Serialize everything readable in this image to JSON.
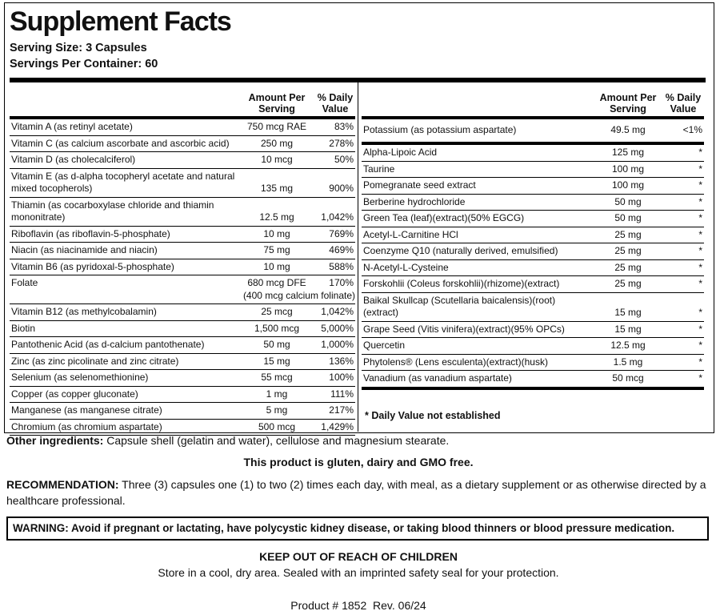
{
  "title": "Supplement Facts",
  "serving_size": "Serving Size: 3 Capsules",
  "servings_per_container": "Servings Per Container: 60",
  "left_table": {
    "headers": [
      "Amount Per Serving",
      "% Daily Value"
    ],
    "rows": [
      {
        "name": "Vitamin A (as retinyl acetate)",
        "amount": "750 mcg RAE",
        "dv": "83%"
      },
      {
        "name": "Vitamin C (as calcium ascorbate and ascorbic acid)",
        "amount": "250 mg",
        "dv": "278%"
      },
      {
        "name": "Vitamin D (as cholecalciferol)",
        "amount": "10 mcg",
        "dv": "50%"
      },
      {
        "name": "Vitamin E (as d-alpha tocopheryl acetate and natural mixed tocopherols)",
        "amount": "135 mg",
        "dv": "900%"
      },
      {
        "name": "Thiamin (as cocarboxylase chloride and thiamin mononitrate)",
        "amount": "12.5 mg",
        "dv": "1,042%"
      },
      {
        "name": "Riboflavin (as riboflavin-5-phosphate)",
        "amount": "10 mg",
        "dv": "769%"
      },
      {
        "name": "Niacin (as niacinamide and niacin)",
        "amount": "75 mg",
        "dv": "469%"
      },
      {
        "name": "Vitamin B6 (as pyridoxal-5-phosphate)",
        "amount": "10 mg",
        "dv": "588%"
      },
      {
        "name": "Folate",
        "amount": "680 mcg DFE",
        "dv": "170%",
        "note": "(400 mcg calcium folinate)"
      },
      {
        "name": "Vitamin B12 (as methylcobalamin)",
        "amount": "25 mcg",
        "dv": "1,042%"
      },
      {
        "name": "Biotin",
        "amount": "1,500 mcg",
        "dv": "5,000%"
      },
      {
        "name": "Pantothenic Acid (as d-calcium pantothenate)",
        "amount": "50 mg",
        "dv": "1,000%"
      },
      {
        "name": "Zinc (as zinc picolinate and zinc citrate)",
        "amount": "15 mg",
        "dv": "136%"
      },
      {
        "name": "Selenium (as selenomethionine)",
        "amount": "55 mcg",
        "dv": "100%"
      },
      {
        "name": "Copper (as copper gluconate)",
        "amount": "1 mg",
        "dv": "111%"
      },
      {
        "name": "Manganese (as manganese citrate)",
        "amount": "5 mg",
        "dv": "217%"
      },
      {
        "name": "Chromium (as chromium aspartate)",
        "amount": "500 mcg",
        "dv": "1,429%"
      }
    ]
  },
  "right_table": {
    "headers": [
      "Amount Per Serving",
      "% Daily Value"
    ],
    "rows": [
      {
        "name": "Potassium (as potassium aspartate)",
        "amount": "49.5 mg",
        "dv": "<1%"
      },
      {
        "name": "Alpha-Lipoic Acid",
        "amount": "125 mg",
        "dv": "*"
      },
      {
        "name": "Taurine",
        "amount": "100 mg",
        "dv": "*"
      },
      {
        "name": "Pomegranate seed extract",
        "amount": "100 mg",
        "dv": "*"
      },
      {
        "name": "Berberine hydrochloride",
        "amount": "50 mg",
        "dv": "*"
      },
      {
        "name": "Green Tea (leaf)(extract)(50% EGCG)",
        "amount": "50 mg",
        "dv": "*"
      },
      {
        "name": "Acetyl-L-Carnitine HCl",
        "amount": "25 mg",
        "dv": "*"
      },
      {
        "name": "Coenzyme Q10 (naturally derived, emulsified)",
        "amount": "25 mg",
        "dv": "*"
      },
      {
        "name": "N-Acetyl-L-Cysteine",
        "amount": "25 mg",
        "dv": "*"
      },
      {
        "name": "Forskohlii (Coleus forskohlii)(rhizome)(extract)",
        "amount": "25 mg",
        "dv": "*"
      },
      {
        "name": "Baikal Skullcap (Scutellaria baicalensis)(root) (extract)",
        "amount": "15 mg",
        "dv": "*"
      },
      {
        "name": "Grape Seed (Vitis vinifera)(extract)(95% OPCs)",
        "amount": "15 mg",
        "dv": "*"
      },
      {
        "name": "Quercetin",
        "amount": "12.5 mg",
        "dv": "*"
      },
      {
        "name": "Phytolens® (Lens esculenta)(extract)(husk)",
        "amount": "1.5 mg",
        "dv": "*"
      },
      {
        "name": "Vanadium (as vanadium aspartate)",
        "amount": "50 mcg",
        "dv": "*"
      }
    ]
  },
  "footnote": "* Daily Value not established",
  "other_ingredients": {
    "label": "Other ingredients:",
    "text": "Capsule shell (gelatin and water), cellulose and magnesium stearate."
  },
  "free_statement": "This product is gluten, dairy and GMO free.",
  "recommendation": {
    "label": "RECOMMENDATION:",
    "text": "Three (3) capsules one (1) to two (2) times each day, with meal, as a dietary supplement or as otherwise directed by a healthcare professional."
  },
  "warning": "WARNING: Avoid if pregnant or lactating, have polycystic kidney disease, or taking blood thinners or blood pressure medication.",
  "keep_out": "KEEP OUT OF REACH OF CHILDREN",
  "storage": "Store in a cool, dry area. Sealed with an imprinted safety seal for your protection.",
  "product": "Product # 1852  Rev. 06/24"
}
